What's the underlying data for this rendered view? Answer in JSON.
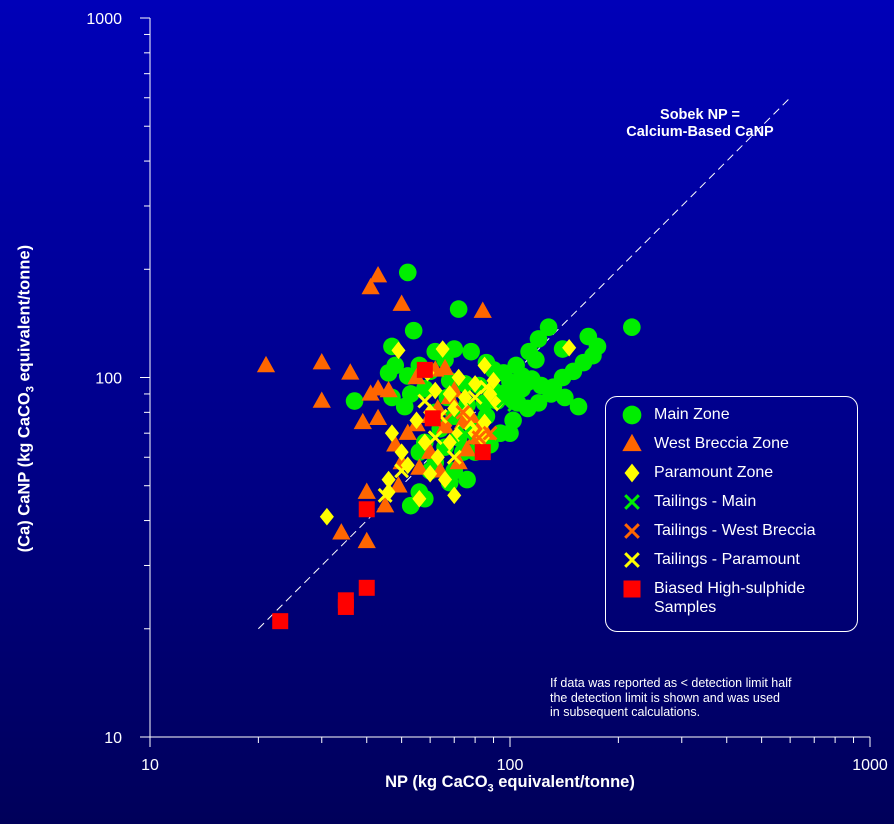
{
  "chart_data": {
    "type": "scatter",
    "xscale": "log",
    "yscale": "log",
    "xlim": [
      10,
      1000
    ],
    "ylim": [
      10,
      1000
    ],
    "xticks": [
      "10",
      "100",
      "1000"
    ],
    "yticks": [
      "10",
      "100",
      "1000"
    ],
    "xlabel": {
      "pre": "NP (kg CaCO",
      "sub": "3",
      "post": " equivalent/tonne)"
    },
    "ylabel": {
      "pre": "(Ca) CaNP (kg CaCO",
      "sub": "3",
      "post": " equivalent/tonne)"
    },
    "reference_line": {
      "label_line1": "Sobek NP =",
      "label_line2": "Calcium-Based CaNP",
      "x": [
        20,
        600
      ],
      "y": [
        20,
        600
      ],
      "style": "dashed white"
    },
    "legend_placement": "lower-right",
    "note": [
      "If data was reported as < detection limit half",
      "the detection limit is shown and was used",
      "in subsequent calculations."
    ],
    "series": [
      {
        "name": "Main Zone",
        "marker": "circle",
        "color": "#00ee00",
        "points": [
          [
            52,
            196
          ],
          [
            72,
            155
          ],
          [
            54,
            135
          ],
          [
            128,
            138
          ],
          [
            218,
            138
          ],
          [
            165,
            130
          ],
          [
            175,
            122
          ],
          [
            140,
            120
          ],
          [
            120,
            128
          ],
          [
            118,
            112
          ],
          [
            113,
            118
          ],
          [
            104,
            108
          ],
          [
            108,
            101
          ],
          [
            112,
            97
          ],
          [
            100,
            97
          ],
          [
            96,
            103
          ],
          [
            90,
            105
          ],
          [
            86,
            110
          ],
          [
            78,
            118
          ],
          [
            70,
            120
          ],
          [
            62,
            118
          ],
          [
            66,
            112
          ],
          [
            47,
            122
          ],
          [
            48,
            108
          ],
          [
            56,
            108
          ],
          [
            60,
            104
          ],
          [
            52,
            101
          ],
          [
            46,
            103
          ],
          [
            68,
            98
          ],
          [
            75,
            96
          ],
          [
            82,
            95
          ],
          [
            90,
            92
          ],
          [
            95,
            90
          ],
          [
            100,
            88
          ],
          [
            105,
            85
          ],
          [
            112,
            82
          ],
          [
            120,
            85
          ],
          [
            130,
            90
          ],
          [
            132,
            94
          ],
          [
            140,
            100
          ],
          [
            150,
            104
          ],
          [
            160,
            110
          ],
          [
            170,
            115
          ],
          [
            155,
            83
          ],
          [
            142,
            88
          ],
          [
            122,
            95
          ],
          [
            115,
            99
          ],
          [
            108,
            93
          ],
          [
            92,
            86
          ],
          [
            85,
            85
          ],
          [
            76,
            84
          ],
          [
            67,
            88
          ],
          [
            58,
            93
          ],
          [
            53,
            90
          ],
          [
            47,
            88
          ],
          [
            37,
            86
          ],
          [
            51,
            83
          ],
          [
            62,
            80
          ],
          [
            70,
            78
          ],
          [
            78,
            75
          ],
          [
            86,
            78
          ],
          [
            94,
            70
          ],
          [
            102,
            76
          ],
          [
            100,
            70
          ],
          [
            88,
            65
          ],
          [
            80,
            62
          ],
          [
            72,
            68
          ],
          [
            64,
            72
          ],
          [
            58,
            66
          ],
          [
            56,
            62
          ],
          [
            62,
            58
          ],
          [
            70,
            55
          ],
          [
            76,
            52
          ],
          [
            68,
            51
          ],
          [
            60,
            55
          ],
          [
            56,
            48
          ],
          [
            53,
            44
          ],
          [
            58,
            46
          ],
          [
            82,
            72
          ],
          [
            74,
            62
          ],
          [
            66,
            64
          ]
        ]
      },
      {
        "name": "West Breccia Zone",
        "marker": "triangle",
        "color": "#ff6600",
        "points": [
          [
            43,
            192
          ],
          [
            41,
            178
          ],
          [
            50,
            160
          ],
          [
            84,
            153
          ],
          [
            21,
            108
          ],
          [
            30,
            110
          ],
          [
            36,
            103
          ],
          [
            43,
            93
          ],
          [
            41,
            90
          ],
          [
            46,
            92
          ],
          [
            30,
            86
          ],
          [
            43,
            77
          ],
          [
            39,
            75
          ],
          [
            55,
            100
          ],
          [
            62,
            105
          ],
          [
            66,
            106
          ],
          [
            70,
            92
          ],
          [
            68,
            88
          ],
          [
            63,
            82
          ],
          [
            60,
            78
          ],
          [
            52,
            70
          ],
          [
            48,
            65
          ],
          [
            50,
            58
          ],
          [
            56,
            56
          ],
          [
            60,
            62
          ],
          [
            64,
            55
          ],
          [
            72,
            58
          ],
          [
            76,
            63
          ],
          [
            80,
            68
          ],
          [
            86,
            70
          ],
          [
            74,
            75
          ],
          [
            66,
            73
          ],
          [
            55,
            74
          ],
          [
            49,
            50
          ],
          [
            45,
            44
          ],
          [
            40,
            48
          ],
          [
            34,
            37
          ],
          [
            40,
            35
          ],
          [
            78,
            78
          ],
          [
            82,
            72
          ]
        ]
      },
      {
        "name": "Paramount Zone",
        "marker": "diamond",
        "color": "#ffff00",
        "points": [
          [
            49,
            119
          ],
          [
            65,
            120
          ],
          [
            146,
            121
          ],
          [
            59,
            103
          ],
          [
            72,
            100
          ],
          [
            85,
            108
          ],
          [
            90,
            98
          ],
          [
            80,
            96
          ],
          [
            68,
            90
          ],
          [
            62,
            92
          ],
          [
            75,
            88
          ],
          [
            88,
            90
          ],
          [
            92,
            85
          ],
          [
            70,
            82
          ],
          [
            60,
            80
          ],
          [
            55,
            76
          ],
          [
            47,
            70
          ],
          [
            50,
            62
          ],
          [
            58,
            66
          ],
          [
            63,
            60
          ],
          [
            68,
            66
          ],
          [
            72,
            70
          ],
          [
            78,
            72
          ],
          [
            85,
            75
          ],
          [
            46,
            52
          ],
          [
            46,
            48
          ],
          [
            52,
            57
          ],
          [
            60,
            54
          ],
          [
            66,
            52
          ],
          [
            70,
            47
          ],
          [
            56,
            46
          ],
          [
            31,
            41
          ],
          [
            84,
            68
          ],
          [
            76,
            80
          ]
        ]
      },
      {
        "name": "Tailings - Main",
        "marker": "x",
        "color": "#00ee00",
        "points": [
          [
            103,
            84
          ],
          [
            96,
            86
          ],
          [
            75,
            70
          ]
        ]
      },
      {
        "name": "Tailings - West Breccia",
        "marker": "x",
        "color": "#ff6600",
        "points": [
          [
            82,
            68
          ],
          [
            88,
            70
          ],
          [
            74,
            80
          ],
          [
            66,
            76
          ]
        ]
      },
      {
        "name": "Tailings - Paramount",
        "marker": "x",
        "color": "#ffff00",
        "points": [
          [
            58,
            86
          ],
          [
            62,
            68
          ],
          [
            70,
            60
          ],
          [
            50,
            55
          ],
          [
            45,
            47
          ],
          [
            64,
            78
          ],
          [
            80,
            88
          ],
          [
            86,
            94
          ]
        ]
      },
      {
        "name": "Biased High-sulphide Samples",
        "marker": "square",
        "color": "#ff0000",
        "points": [
          [
            58,
            105
          ],
          [
            61,
            77
          ],
          [
            84,
            62
          ],
          [
            40,
            43
          ],
          [
            40,
            26
          ],
          [
            35,
            24
          ],
          [
            35,
            23
          ],
          [
            23,
            21
          ]
        ]
      }
    ]
  }
}
